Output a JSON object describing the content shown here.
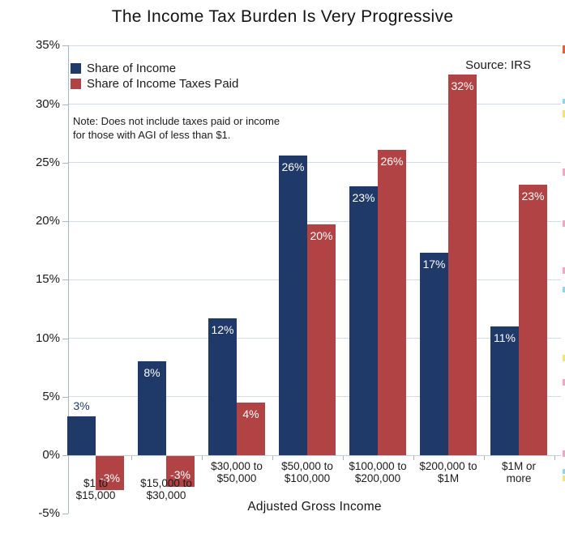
{
  "title": "The Income Tax Burden Is Very Progressive",
  "source": "Source: IRS",
  "note_line1": "Note: Does not include taxes paid or income",
  "note_line2": "for those with AGI of less than $1.",
  "colors": {
    "income_blue": "#1f3a68",
    "taxes_red": "#b24345",
    "gridline": "#cfdbe6",
    "zero_line": "#c3cdd6",
    "axis": "#a8b4be",
    "text": "#1a1a1a"
  },
  "legend": [
    {
      "label": "Share of Income",
      "color": "#1f3a68"
    },
    {
      "label": "Share of Income Taxes Paid",
      "color": "#b24345"
    }
  ],
  "chart_data": {
    "type": "bar",
    "title": "The Income Tax Burden Is Very Progressive",
    "xlabel": "Adjusted Gross Income",
    "ylabel": "",
    "ylim": [
      -5,
      35
    ],
    "grid": "horizontal",
    "legend_position": "top-left",
    "categories": [
      [
        "$1 to",
        "$15,000"
      ],
      [
        "$15,000 to",
        "$30,000"
      ],
      [
        "$30,000 to",
        "$50,000"
      ],
      [
        "$50,000 to",
        "$100,000"
      ],
      [
        "$100,000 to",
        "$200,000"
      ],
      [
        "$200,000 to",
        "$1M"
      ],
      [
        "$1M or",
        "more"
      ]
    ],
    "series": [
      {
        "name": "Share of Income",
        "color": "#1f3a68",
        "values": [
          3.3,
          8.0,
          11.7,
          25.6,
          23.0,
          17.3,
          11.0
        ],
        "labels": [
          "3%",
          "8%",
          "12%",
          "26%",
          "23%",
          "17%",
          "11%"
        ]
      },
      {
        "name": "Share of Income Taxes Paid",
        "color": "#b24345",
        "values": [
          -2.9,
          -2.6,
          4.5,
          19.7,
          26.1,
          32.5,
          23.1
        ],
        "labels": [
          "-3%",
          "-3%",
          "4%",
          "20%",
          "26%",
          "32%",
          "23%"
        ]
      }
    ],
    "y_ticks": [
      {
        "v": 35,
        "label": "35%"
      },
      {
        "v": 30,
        "label": "30%"
      },
      {
        "v": 25,
        "label": "25%"
      },
      {
        "v": 20,
        "label": "20%"
      },
      {
        "v": 15,
        "label": "15%"
      },
      {
        "v": 10,
        "label": "10%"
      },
      {
        "v": 5,
        "label": "5%"
      },
      {
        "v": 0,
        "label": "0%"
      },
      {
        "v": -5,
        "label": "-5%"
      }
    ]
  },
  "edge_marks": [
    {
      "y": 56,
      "h": 10,
      "color": "#e2603a"
    },
    {
      "y": 122,
      "h": 6,
      "color": "#8ed6e6"
    },
    {
      "y": 136,
      "h": 9,
      "color": "#f2e27a"
    },
    {
      "y": 208,
      "h": 9,
      "color": "#f0a7c6"
    },
    {
      "y": 272,
      "h": 8,
      "color": "#f0a7c6"
    },
    {
      "y": 330,
      "h": 8,
      "color": "#f0a7c6"
    },
    {
      "y": 354,
      "h": 7,
      "color": "#8ed6e6"
    },
    {
      "y": 438,
      "h": 8,
      "color": "#f2e27a"
    },
    {
      "y": 468,
      "h": 8,
      "color": "#f0a7c6"
    },
    {
      "y": 556,
      "h": 8,
      "color": "#f0a7c6"
    },
    {
      "y": 579,
      "h": 6,
      "color": "#8ed6e6"
    },
    {
      "y": 587,
      "h": 7,
      "color": "#f2e27a"
    }
  ]
}
